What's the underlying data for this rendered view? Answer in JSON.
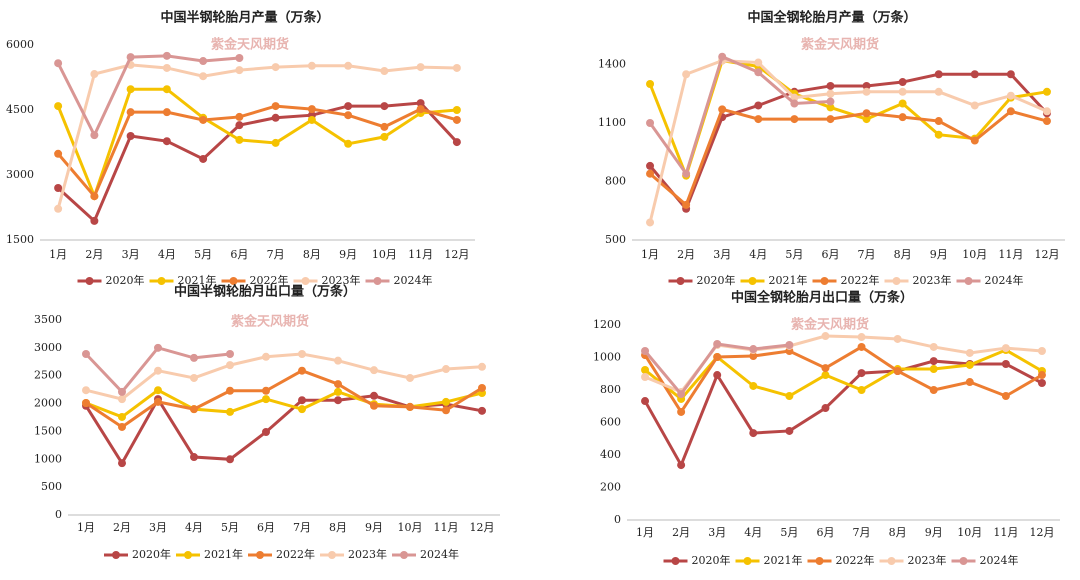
{
  "watermark": "紫金天风期货",
  "chart_data": [
    {
      "type": "line",
      "title": "中国半钢轮胎月产量（万条）",
      "categories": [
        "1月",
        "2月",
        "3月",
        "4月",
        "5月",
        "6月",
        "7月",
        "8月",
        "9月",
        "10月",
        "11月",
        "12月"
      ],
      "ylim": [
        1500,
        6000
      ],
      "yticks": [
        1500,
        3000,
        4500,
        6000
      ],
      "grid": false,
      "series": [
        {
          "name": "2020年",
          "color": "#b84646",
          "values": [
            2700,
            1940,
            3900,
            3780,
            3370,
            4150,
            4320,
            4380,
            4590,
            4590,
            4660,
            3760
          ]
        },
        {
          "name": "2021年",
          "color": "#f5c200",
          "values": [
            4590,
            2510,
            4980,
            4980,
            4320,
            3810,
            3740,
            4270,
            3720,
            3880,
            4430,
            4500
          ]
        },
        {
          "name": "2022年",
          "color": "#ed7d31",
          "values": [
            3490,
            2510,
            4450,
            4450,
            4270,
            4340,
            4590,
            4520,
            4380,
            4110,
            4520,
            4270
          ]
        },
        {
          "name": "2023年",
          "color": "#f8cbad",
          "values": [
            2220,
            5330,
            5540,
            5470,
            5280,
            5420,
            5490,
            5520,
            5520,
            5400,
            5490,
            5470
          ]
        },
        {
          "name": "2024年",
          "color": "#d99694",
          "values": [
            5580,
            3920,
            5720,
            5750,
            5630,
            5700,
            null,
            null,
            null,
            null,
            null,
            null
          ]
        }
      ]
    },
    {
      "type": "line",
      "title": "中国全钢轮胎月产量（万条）",
      "categories": [
        "1月",
        "2月",
        "3月",
        "4月",
        "5月",
        "6月",
        "7月",
        "8月",
        "9月",
        "10月",
        "11月",
        "12月"
      ],
      "ylim": [
        500,
        1500
      ],
      "yticks": [
        500,
        800,
        1100,
        1400
      ],
      "grid": false,
      "series": [
        {
          "name": "2020年",
          "color": "#b84646",
          "values": [
            880,
            660,
            1130,
            1190,
            1260,
            1290,
            1290,
            1310,
            1350,
            1350,
            1350,
            1150
          ]
        },
        {
          "name": "2021年",
          "color": "#f5c200",
          "values": [
            1300,
            830,
            1420,
            1390,
            1250,
            1180,
            1120,
            1200,
            1040,
            1020,
            1230,
            1260
          ]
        },
        {
          "name": "2022年",
          "color": "#ed7d31",
          "values": [
            840,
            680,
            1170,
            1120,
            1120,
            1120,
            1150,
            1130,
            1110,
            1010,
            1160,
            1110
          ]
        },
        {
          "name": "2023年",
          "color": "#f8cbad",
          "values": [
            590,
            1350,
            1420,
            1410,
            1230,
            1250,
            1260,
            1260,
            1260,
            1190,
            1240,
            1160
          ]
        },
        {
          "name": "2024年",
          "color": "#d99694",
          "values": [
            1100,
            840,
            1440,
            1360,
            1200,
            1210,
            null,
            null,
            null,
            null,
            null,
            null
          ]
        }
      ]
    },
    {
      "type": "line",
      "title": "中国半钢轮胎月出口量（万条）",
      "categories": [
        "1月",
        "2月",
        "3月",
        "4月",
        "5月",
        "6月",
        "7月",
        "8月",
        "9月",
        "10月",
        "11月",
        "12月"
      ],
      "ylim": [
        0,
        3500
      ],
      "yticks": [
        0,
        500,
        1000,
        1500,
        2000,
        2500,
        3000,
        3500
      ],
      "grid": false,
      "series": [
        {
          "name": "2020年",
          "color": "#b84646",
          "values": [
            1960,
            930,
            2080,
            1040,
            1000,
            1490,
            2060,
            2060,
            2140,
            1940,
            1990,
            1870
          ]
        },
        {
          "name": "2021年",
          "color": "#f5c200",
          "values": [
            2010,
            1760,
            2240,
            1900,
            1850,
            2080,
            1900,
            2210,
            1990,
            1940,
            2030,
            2190
          ]
        },
        {
          "name": "2022年",
          "color": "#ed7d31",
          "values": [
            2010,
            1580,
            2030,
            1900,
            2230,
            2230,
            2590,
            2350,
            1960,
            1940,
            1880,
            2280
          ]
        },
        {
          "name": "2023年",
          "color": "#f8cbad",
          "values": [
            2240,
            2080,
            2590,
            2460,
            2690,
            2840,
            2890,
            2770,
            2600,
            2460,
            2620,
            2660
          ]
        },
        {
          "name": "2024年",
          "color": "#d99694",
          "values": [
            2890,
            2210,
            3000,
            2820,
            2890,
            null,
            null,
            null,
            null,
            null,
            null,
            null
          ]
        }
      ]
    },
    {
      "type": "line",
      "title": "中国全钢轮胎月出口量（万条）",
      "categories": [
        "1月",
        "2月",
        "3月",
        "4月",
        "5月",
        "6月",
        "7月",
        "8月",
        "9月",
        "10月",
        "11月",
        "12月"
      ],
      "ylim": [
        0,
        1200
      ],
      "yticks": [
        0,
        200,
        400,
        600,
        800,
        1000,
        1200
      ],
      "grid": false,
      "series": [
        {
          "name": "2020年",
          "color": "#b84646",
          "values": [
            732,
            338,
            892,
            535,
            548,
            689,
            904,
            917,
            978,
            960,
            960,
            843
          ]
        },
        {
          "name": "2021年",
          "color": "#f5c200",
          "values": [
            923,
            745,
            1003,
            825,
            763,
            892,
            800,
            929,
            929,
            954,
            1046,
            917
          ]
        },
        {
          "name": "2022年",
          "color": "#ed7d31",
          "values": [
            1015,
            665,
            1003,
            1009,
            1040,
            935,
            1065,
            917,
            800,
            849,
            763,
            892
          ]
        },
        {
          "name": "2023年",
          "color": "#f8cbad",
          "values": [
            880,
            788,
            1077,
            1046,
            1071,
            1132,
            1126,
            1114,
            1065,
            1028,
            1058,
            1040
          ]
        },
        {
          "name": "2024年",
          "color": "#d99694",
          "values": [
            1040,
            775,
            1083,
            1052,
            1077,
            null,
            null,
            null,
            null,
            null,
            null,
            null
          ]
        }
      ]
    }
  ]
}
